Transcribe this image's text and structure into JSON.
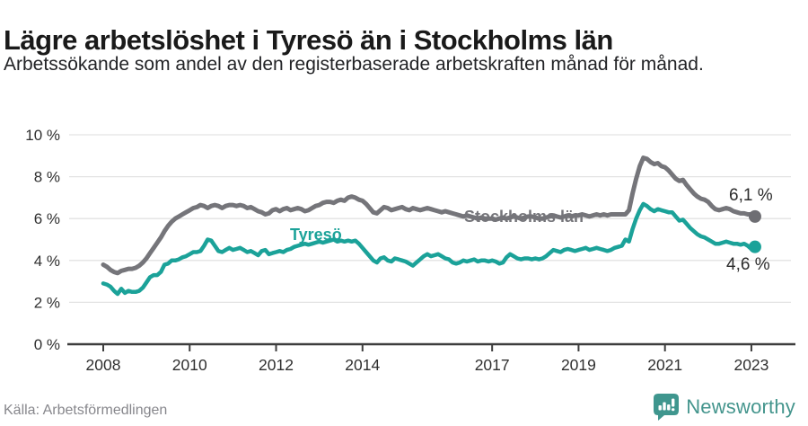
{
  "header": {
    "title": "Lägre arbetslöshet i Tyresö än i Stockholms län",
    "subtitle": "Arbetssökande som andel av den registerbaserade arbetskraften månad för månad."
  },
  "footer": {
    "source": "Källa: Arbetsförmedlingen",
    "logo_text": "Newsworthy"
  },
  "colors": {
    "accent_teal": "#1ba299",
    "line_gray": "#75757a",
    "grid": "#e3e3e3",
    "axis": "#3d3d3d",
    "tick_text": "#2f2f2f",
    "logo_teal": "#44958d"
  },
  "chart_data": {
    "type": "line",
    "title": "Lägre arbetslöshet i Tyresö än i Stockholms län",
    "subtitle": "Arbetssökande som andel av den registerbaserade arbetskraften månad för månad.",
    "unit": "%",
    "x_start_year": 2008,
    "x_start_month": 1,
    "x_step_months": 1,
    "x_end_year": 2023,
    "x_end_month": 2,
    "ylim": [
      0,
      10
    ],
    "grid": "horizontal",
    "legend_position": "inline-labels",
    "y_ticks": [
      0,
      2,
      4,
      6,
      8,
      10
    ],
    "y_tick_labels": [
      "0 %",
      "2 %",
      "4 %",
      "6 %",
      "8 %",
      "10 %"
    ],
    "x_tick_years": [
      2008,
      2010,
      2012,
      2014,
      2017,
      2019,
      2021,
      2023
    ],
    "x_tick_labels": [
      "2008",
      "2010",
      "2012",
      "2014",
      "2017",
      "2019",
      "2021",
      "2023"
    ],
    "series": [
      {
        "name": "Stockholms län",
        "color": "#75757a",
        "end_label": "6,1 %",
        "end_value": 6.1,
        "values": [
          3.8,
          3.7,
          3.55,
          3.45,
          3.4,
          3.5,
          3.55,
          3.6,
          3.6,
          3.65,
          3.75,
          3.9,
          4.1,
          4.35,
          4.6,
          4.85,
          5.1,
          5.4,
          5.65,
          5.85,
          6.0,
          6.1,
          6.2,
          6.3,
          6.4,
          6.5,
          6.55,
          6.65,
          6.6,
          6.5,
          6.6,
          6.65,
          6.6,
          6.5,
          6.6,
          6.65,
          6.65,
          6.6,
          6.65,
          6.6,
          6.5,
          6.55,
          6.45,
          6.35,
          6.3,
          6.2,
          6.25,
          6.4,
          6.45,
          6.35,
          6.45,
          6.5,
          6.4,
          6.45,
          6.5,
          6.45,
          6.35,
          6.4,
          6.5,
          6.6,
          6.65,
          6.75,
          6.8,
          6.8,
          6.75,
          6.85,
          6.9,
          6.85,
          7.0,
          7.05,
          7.0,
          6.9,
          6.85,
          6.7,
          6.5,
          6.3,
          6.25,
          6.4,
          6.55,
          6.5,
          6.4,
          6.45,
          6.5,
          6.55,
          6.45,
          6.4,
          6.5,
          6.45,
          6.4,
          6.45,
          6.5,
          6.45,
          6.4,
          6.35,
          6.3,
          6.35,
          6.3,
          6.25,
          6.2,
          6.15,
          6.1,
          6.15,
          6.1,
          6.05,
          6.0,
          6.05,
          6.0,
          6.0,
          6.0,
          5.95,
          6.0,
          6.05,
          6.0,
          6.05,
          6.1,
          6.05,
          6.0,
          6.05,
          6.1,
          6.1,
          6.05,
          6.0,
          6.0,
          6.05,
          6.1,
          6.15,
          6.1,
          6.05,
          6.1,
          6.15,
          6.1,
          6.15,
          6.15,
          6.2,
          6.15,
          6.1,
          6.15,
          6.2,
          6.15,
          6.2,
          6.15,
          6.2,
          6.2,
          6.2,
          6.2,
          6.2,
          6.4,
          7.2,
          7.9,
          8.5,
          8.9,
          8.85,
          8.7,
          8.6,
          8.65,
          8.5,
          8.45,
          8.3,
          8.1,
          7.9,
          7.8,
          7.85,
          7.6,
          7.4,
          7.2,
          7.05,
          6.95,
          6.9,
          6.8,
          6.6,
          6.45,
          6.4,
          6.45,
          6.5,
          6.45,
          6.35,
          6.3,
          6.25,
          6.25,
          6.2,
          6.2,
          6.1
        ]
      },
      {
        "name": "Tyresö",
        "color": "#1ba299",
        "end_label": "4,6 %",
        "end_value": 4.6,
        "values": [
          2.9,
          2.85,
          2.75,
          2.55,
          2.4,
          2.65,
          2.45,
          2.55,
          2.5,
          2.5,
          2.55,
          2.7,
          2.95,
          3.2,
          3.3,
          3.3,
          3.45,
          3.8,
          3.85,
          4.0,
          4.0,
          4.05,
          4.15,
          4.2,
          4.3,
          4.4,
          4.4,
          4.45,
          4.7,
          5.0,
          4.95,
          4.7,
          4.45,
          4.4,
          4.5,
          4.6,
          4.5,
          4.55,
          4.6,
          4.5,
          4.4,
          4.45,
          4.35,
          4.25,
          4.45,
          4.5,
          4.3,
          4.35,
          4.4,
          4.45,
          4.4,
          4.5,
          4.55,
          4.65,
          4.7,
          4.75,
          4.8,
          4.75,
          4.8,
          4.85,
          4.9,
          4.85,
          4.9,
          4.95,
          5.0,
          4.9,
          4.95,
          4.9,
          4.95,
          4.9,
          4.95,
          4.8,
          4.6,
          4.4,
          4.2,
          4.0,
          3.9,
          4.1,
          4.15,
          4.0,
          3.95,
          4.1,
          4.05,
          4.0,
          3.95,
          3.85,
          3.75,
          3.9,
          4.05,
          4.2,
          4.3,
          4.2,
          4.25,
          4.3,
          4.2,
          4.1,
          4.05,
          3.9,
          3.85,
          3.9,
          4.0,
          3.95,
          4.0,
          4.05,
          3.95,
          4.0,
          4.0,
          3.95,
          4.0,
          3.95,
          3.85,
          3.9,
          4.15,
          4.3,
          4.2,
          4.1,
          4.05,
          4.1,
          4.1,
          4.05,
          4.1,
          4.05,
          4.1,
          4.2,
          4.35,
          4.5,
          4.45,
          4.4,
          4.5,
          4.55,
          4.5,
          4.45,
          4.5,
          4.55,
          4.6,
          4.5,
          4.55,
          4.6,
          4.55,
          4.5,
          4.45,
          4.5,
          4.6,
          4.65,
          4.7,
          5.0,
          4.9,
          5.5,
          6.0,
          6.4,
          6.7,
          6.6,
          6.45,
          6.35,
          6.45,
          6.4,
          6.35,
          6.3,
          6.3,
          6.1,
          5.9,
          5.95,
          5.75,
          5.55,
          5.4,
          5.25,
          5.15,
          5.1,
          5.0,
          4.9,
          4.8,
          4.8,
          4.85,
          4.9,
          4.85,
          4.8,
          4.8,
          4.75,
          4.8,
          4.7,
          4.55,
          4.65
        ]
      }
    ]
  }
}
